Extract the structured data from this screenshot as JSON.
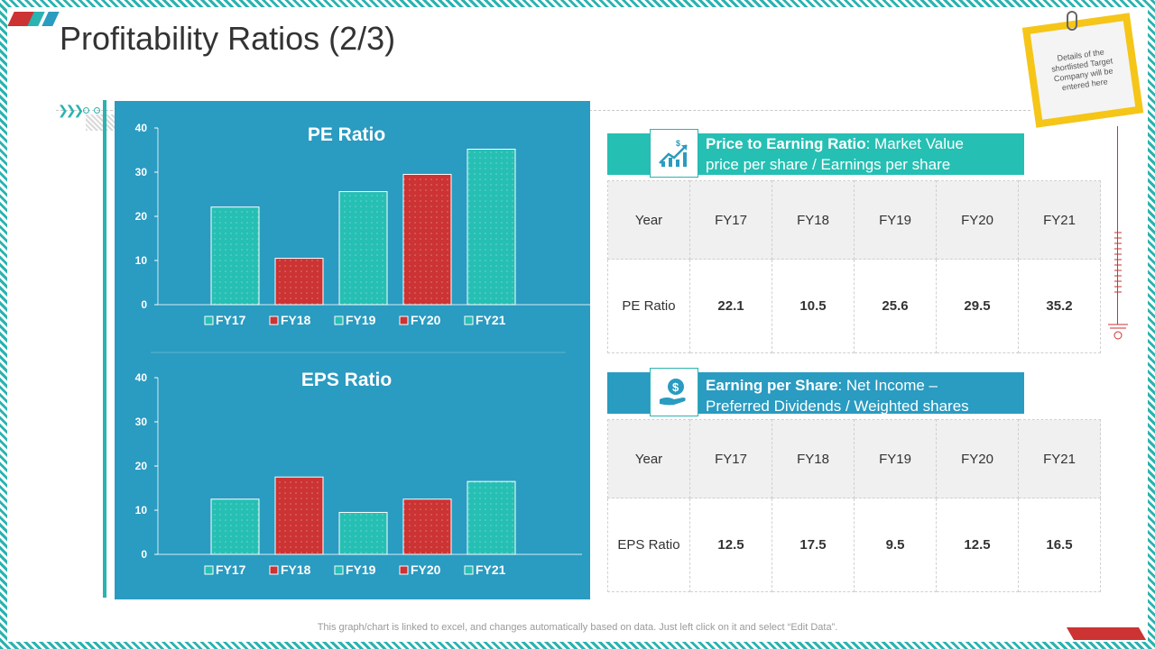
{
  "title": "Profitability Ratios (2/3)",
  "colors": {
    "teal": "#2ab3b0",
    "panel_blue": "#2a9bc1",
    "bar_teal": "#26bfb3",
    "bar_red": "#cc3333",
    "note_yellow": "#f5c518"
  },
  "chart_data": [
    {
      "type": "bar",
      "title": "PE Ratio",
      "categories": [
        "FY17",
        "FY18",
        "FY19",
        "FY20",
        "FY21"
      ],
      "values": [
        22.1,
        10.5,
        25.6,
        29.5,
        35.2
      ],
      "bar_colors": [
        "#26bfb3",
        "#cc3333",
        "#26bfb3",
        "#cc3333",
        "#26bfb3"
      ],
      "yticks": [
        "0",
        "10",
        "20",
        "30",
        "40"
      ],
      "ylim": [
        0,
        40
      ],
      "legend": [
        "FY17",
        "FY18",
        "FY19",
        "FY20",
        "FY21"
      ],
      "legend_position": "bottom",
      "grid": false
    },
    {
      "type": "bar",
      "title": "EPS Ratio",
      "categories": [
        "FY17",
        "FY18",
        "FY19",
        "FY20",
        "FY21"
      ],
      "values": [
        12.5,
        17.5,
        9.5,
        12.5,
        16.5
      ],
      "bar_colors": [
        "#26bfb3",
        "#cc3333",
        "#26bfb3",
        "#cc3333",
        "#26bfb3"
      ],
      "yticks": [
        "0",
        "10",
        "20",
        "30",
        "40"
      ],
      "ylim": [
        0,
        40
      ],
      "legend": [
        "FY17",
        "FY18",
        "FY19",
        "FY20",
        "FY21"
      ],
      "legend_position": "bottom",
      "grid": false
    }
  ],
  "pe_info": {
    "bold": "Price to Earning Ratio",
    "rest": ": Market Value price per share / Earnings per share",
    "icon": "growth-chart-dollar-icon"
  },
  "eps_info": {
    "bold": "Earning per Share",
    "rest": ": Net Income – Preferred Dividends / Weighted shares outstanding",
    "icon": "hand-dollar-icon"
  },
  "pe_table": {
    "header": [
      "Year",
      "FY17",
      "FY18",
      "FY19",
      "FY20",
      "FY21"
    ],
    "row": [
      "PE Ratio",
      "22.1",
      "10.5",
      "25.6",
      "29.5",
      "35.2"
    ]
  },
  "eps_table": {
    "header": [
      "Year",
      "FY17",
      "FY18",
      "FY19",
      "FY20",
      "FY21"
    ],
    "row": [
      "EPS Ratio",
      "12.5",
      "17.5",
      "9.5",
      "12.5",
      "16.5"
    ]
  },
  "sticky_note": "Details of the shortlisted Target Company will be entered here",
  "footer": "This graph/chart is linked to excel, and changes automatically based on data. Just left click on it and select “Edit Data”."
}
